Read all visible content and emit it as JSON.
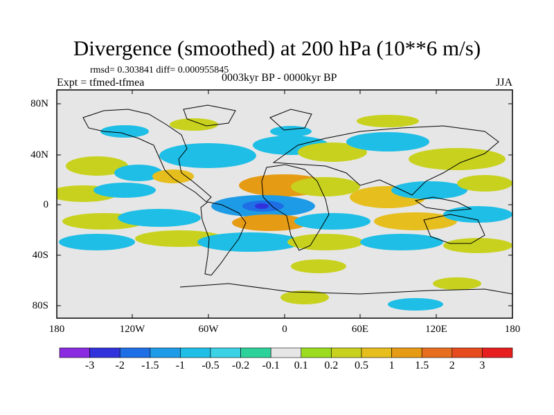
{
  "header": {
    "title": "Divergence (smoothed) at 200 hPa (10**6 m/s)",
    "stats": "rmsd= 0.303841 diff= 0.000955845",
    "experiment": "Expt = tfmed-tfmea",
    "period": "0003kyr BP - 0000kyr BP",
    "season": "JJA"
  },
  "axes": {
    "lat_ticks": [
      "80N",
      "40N",
      "0",
      "40S",
      "80S"
    ],
    "lon_ticks": [
      "180",
      "120W",
      "60W",
      "0",
      "60E",
      "120E",
      "180"
    ]
  },
  "colorbar": {
    "labels": [
      "-3",
      "-2",
      "-1.5",
      "-1",
      "-0.5",
      "-0.2",
      "-0.1",
      "0.1",
      "0.2",
      "0.5",
      "1",
      "1.5",
      "2",
      "3"
    ],
    "colors": [
      "#8a2be2",
      "#3232dc",
      "#1e6ee6",
      "#1e9be6",
      "#1ebee6",
      "#3cd2e6",
      "#2dd29b",
      "#e6e6e6",
      "#9bdc1e",
      "#c8d21e",
      "#e6be1e",
      "#e69b14",
      "#e66e1e",
      "#e64b1e",
      "#e61e1e"
    ]
  },
  "field_colors": {
    "neg1": "#1ebee6",
    "neg2": "#1e9be6",
    "neg3": "#1e6ee6",
    "neg4": "#3232dc",
    "pos1": "#9bdc1e",
    "pos2": "#c8d21e",
    "pos3": "#e6be1e",
    "pos4": "#e69b14",
    "neutral": "#e6e6e6"
  }
}
